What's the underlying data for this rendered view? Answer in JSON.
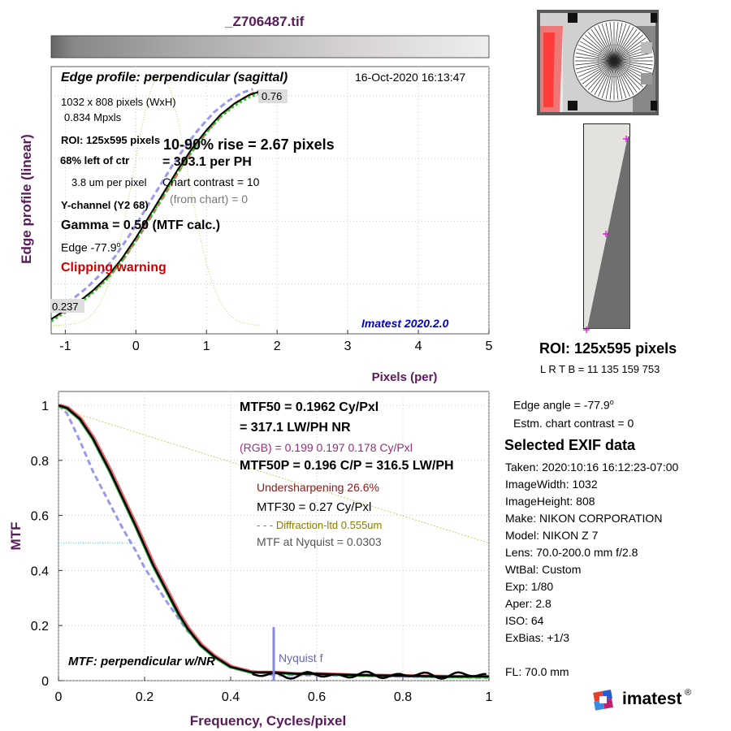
{
  "file_title": "_Z706487.tif",
  "colors": {
    "axis_label": "#5a1a5a",
    "clip": "#cc0000",
    "blue_label": "#0000cc",
    "rgb": "#9a2d7a",
    "undersharp": "#8b1a1a",
    "diffraction": "#8a7a00",
    "nyquist": "#8888dd"
  },
  "edge": {
    "title": "Edge profile: perpendicular (sagittal)",
    "date": "16-Oct-2020 16:13:47",
    "size": "1032 x 808 pixels (WxH)",
    "mpxls": "0.834 Mpxls",
    "roi": "ROI:  125x595 pixels",
    "left_ctr": "68% left of ctr",
    "um_per_pixel": "3.8 um per pixel",
    "ychannel": "Y-channel  (Y2 68)",
    "gamma": "Gamma = 0.50 (MTF calc.)",
    "edge_label": "Edge  -77.9",
    "edge_sup": "o",
    "clip": "Clipping warning",
    "rise": "10-90% rise = 2.67 pixels",
    "per_ph": "= 303.1 per PH",
    "chart_contrast": "Chart contrast = 10",
    "from_chart": "(from chart) =     0",
    "version": "Imatest 2020.2.0",
    "top_val": "0.76",
    "bot_val": "0.237",
    "ylabel": "Edge profile (linear)",
    "xlabel": "Pixels (per)"
  },
  "mtf": {
    "mtf50": "MTF50 = 0.1962 Cy/Pxl",
    "lwph": "= 317.1 LW/PH  NR",
    "rgb": "(RGB) = 0.199  0.197  0.178 Cy/Pxl",
    "mtf50p": "MTF50P = 0.196 C/P = 316.5 LW/PH",
    "undersharp": "Undersharpening 26.6%",
    "mtf30": "MTF30 = 0.27 Cy/Pxl",
    "diffraction": "- - - Diffraction-ltd  0.555um",
    "nyquist_mtf": "MTF at Nyquist = 0.0303",
    "nyquist_f": "Nyquist f",
    "legend": "MTF: perpendicular w/NR",
    "ylabel": "MTF",
    "xlabel": "Frequency, Cycles/pixel"
  },
  "side": {
    "roi": "ROI:  125x595 pixels",
    "lrtb": "L R  T B = 11 135  159 753",
    "edge_angle": "Edge angle = -77.9",
    "edge_angle_sup": "o",
    "estm": "Estm. chart contrast = 0",
    "exif_title": "Selected EXIF data",
    "exif": [
      "Taken: 2020:10:16 16:12:23-07:00",
      "ImageWidth:  1032",
      "ImageHeight:  808",
      "Make:  NIKON CORPORATION",
      "Model:  NIKON Z 7",
      "Lens:   70.0-200.0 mm f/2.8",
      "WtBal:  Custom",
      "Exp:    1/80",
      "Aper:   2.8",
      "ISO:    64",
      "ExBias:  +1/3"
    ],
    "fl": "FL:     70.0 mm",
    "logo": "imatest",
    "logo_reg": "®"
  },
  "chart_data": [
    {
      "type": "line",
      "title": "Edge profile: perpendicular (sagittal)",
      "xlabel": "Pixels (per)",
      "ylabel": "Edge profile (linear)",
      "xlim": [
        -1.2,
        5
      ],
      "ylim": [
        0.18,
        0.82
      ],
      "x_ticks": [
        "-1",
        "0",
        "1",
        "2",
        "3",
        "4",
        "5"
      ],
      "series": [
        {
          "x": [
            -1.2,
            -1.0,
            -0.8,
            -0.6,
            -0.4,
            -0.2,
            0.0,
            0.2,
            0.4,
            0.6,
            0.8,
            1.0,
            1.2,
            1.4,
            1.6,
            1.75
          ],
          "y": [
            0.215,
            0.237,
            0.258,
            0.285,
            0.318,
            0.36,
            0.41,
            0.465,
            0.52,
            0.575,
            0.625,
            0.668,
            0.705,
            0.732,
            0.752,
            0.76
          ]
        }
      ]
    },
    {
      "type": "line",
      "title": "MTF: perpendicular w/NR",
      "xlabel": "Frequency, Cycles/pixel",
      "ylabel": "MTF",
      "xlim": [
        0,
        1
      ],
      "ylim": [
        0,
        1.05
      ],
      "x_ticks": [
        "0",
        "0.2",
        "0.4",
        "0.6",
        "0.8",
        "1"
      ],
      "y_ticks": [
        "0",
        "0.2",
        "0.4",
        "0.6",
        "0.8",
        "1"
      ],
      "series": [
        {
          "x": [
            0,
            0.02,
            0.05,
            0.08,
            0.1,
            0.12,
            0.15,
            0.18,
            0.2,
            0.22,
            0.25,
            0.28,
            0.3,
            0.33,
            0.36,
            0.4,
            0.45,
            0.5,
            0.55,
            0.6,
            0.7,
            0.8,
            0.9,
            1.0
          ],
          "y": [
            1.0,
            0.99,
            0.95,
            0.88,
            0.82,
            0.76,
            0.66,
            0.56,
            0.49,
            0.42,
            0.33,
            0.24,
            0.19,
            0.13,
            0.09,
            0.05,
            0.03,
            0.03,
            0.025,
            0.025,
            0.02,
            0.018,
            0.015,
            0.015
          ]
        },
        {
          "x": [
            0,
            0.02,
            0.05,
            0.08,
            0.1,
            0.12,
            0.15,
            0.18,
            0.2,
            0.25,
            0.3,
            0.35,
            0.4,
            0.5,
            0.6,
            0.8,
            1.0
          ],
          "y": [
            1.0,
            0.97,
            0.87,
            0.76,
            0.7,
            0.64,
            0.55,
            0.47,
            0.41,
            0.29,
            0.18,
            0.1,
            0.05,
            0.02,
            0.02,
            0.015,
            0.01
          ]
        },
        {
          "x": [
            0,
            1.0
          ],
          "y": [
            0.99,
            0.5
          ]
        }
      ]
    }
  ]
}
